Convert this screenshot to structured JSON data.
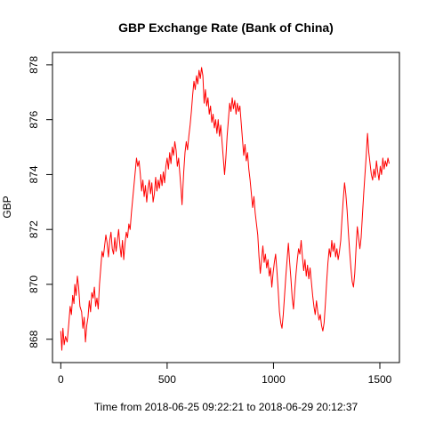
{
  "chart_data": {
    "type": "line",
    "title": "GBP Exchange Rate (Bank of China)",
    "xlabel": "Time from 2018-06-25 09:22:21 to 2018-06-29 20:12:37",
    "ylabel": "GBP",
    "xlim": [
      -39,
      1592
    ],
    "ylim": [
      867.15,
      878.45
    ],
    "x_ticks": [
      0,
      500,
      1000,
      1500
    ],
    "y_ticks": [
      868,
      870,
      872,
      874,
      876,
      878
    ],
    "grid": false,
    "legend": "none",
    "series": [
      {
        "color": "#ff0000",
        "points": [
          [
            0,
            868.3
          ],
          [
            5,
            867.6
          ],
          [
            10,
            868.4
          ],
          [
            16,
            867.8
          ],
          [
            22,
            868.1
          ],
          [
            30,
            867.9
          ],
          [
            38,
            868.6
          ],
          [
            44,
            869.2
          ],
          [
            50,
            868.9
          ],
          [
            56,
            869.6
          ],
          [
            62,
            869.3
          ],
          [
            66,
            870.0
          ],
          [
            72,
            869.6
          ],
          [
            78,
            870.3
          ],
          [
            84,
            869.9
          ],
          [
            90,
            869.2
          ],
          [
            98,
            869.0
          ],
          [
            104,
            868.4
          ],
          [
            110,
            868.8
          ],
          [
            116,
            867.9
          ],
          [
            122,
            868.5
          ],
          [
            128,
            868.8
          ],
          [
            134,
            869.4
          ],
          [
            140,
            869.0
          ],
          [
            146,
            869.7
          ],
          [
            152,
            869.5
          ],
          [
            158,
            869.9
          ],
          [
            164,
            869.2
          ],
          [
            170,
            869.5
          ],
          [
            176,
            869.1
          ],
          [
            182,
            870.0
          ],
          [
            188,
            870.6
          ],
          [
            194,
            871.2
          ],
          [
            200,
            871.0
          ],
          [
            206,
            871.4
          ],
          [
            212,
            871.8
          ],
          [
            218,
            871.5
          ],
          [
            224,
            871.0
          ],
          [
            230,
            871.6
          ],
          [
            236,
            871.9
          ],
          [
            242,
            871.3
          ],
          [
            248,
            871.1
          ],
          [
            254,
            871.7
          ],
          [
            260,
            871.2
          ],
          [
            266,
            871.6
          ],
          [
            272,
            872.0
          ],
          [
            278,
            871.4
          ],
          [
            284,
            871.0
          ],
          [
            290,
            871.6
          ],
          [
            296,
            870.9
          ],
          [
            302,
            871.5
          ],
          [
            308,
            871.9
          ],
          [
            314,
            871.7
          ],
          [
            320,
            872.2
          ],
          [
            326,
            872.0
          ],
          [
            332,
            872.6
          ],
          [
            338,
            873.1
          ],
          [
            344,
            873.6
          ],
          [
            350,
            874.1
          ],
          [
            356,
            874.6
          ],
          [
            362,
            874.3
          ],
          [
            368,
            874.5
          ],
          [
            374,
            874.0
          ],
          [
            380,
            873.4
          ],
          [
            386,
            873.8
          ],
          [
            392,
            873.2
          ],
          [
            398,
            873.6
          ],
          [
            404,
            873.0
          ],
          [
            410,
            873.5
          ],
          [
            416,
            873.8
          ],
          [
            422,
            873.3
          ],
          [
            428,
            873.7
          ],
          [
            434,
            873.0
          ],
          [
            440,
            873.3
          ],
          [
            446,
            873.9
          ],
          [
            452,
            873.4
          ],
          [
            458,
            873.8
          ],
          [
            464,
            873.5
          ],
          [
            470,
            874.0
          ],
          [
            476,
            873.6
          ],
          [
            482,
            874.1
          ],
          [
            488,
            873.7
          ],
          [
            494,
            874.3
          ],
          [
            500,
            874.6
          ],
          [
            506,
            874.2
          ],
          [
            512,
            874.8
          ],
          [
            518,
            874.4
          ],
          [
            524,
            875.0
          ],
          [
            530,
            874.7
          ],
          [
            536,
            875.2
          ],
          [
            542,
            874.9
          ],
          [
            548,
            874.3
          ],
          [
            554,
            874.6
          ],
          [
            560,
            874.0
          ],
          [
            566,
            873.4
          ],
          [
            570,
            872.9
          ],
          [
            574,
            873.5
          ],
          [
            578,
            874.1
          ],
          [
            584,
            874.8
          ],
          [
            590,
            875.2
          ],
          [
            596,
            874.9
          ],
          [
            602,
            875.4
          ],
          [
            608,
            875.8
          ],
          [
            614,
            876.3
          ],
          [
            620,
            876.9
          ],
          [
            626,
            877.4
          ],
          [
            632,
            877.1
          ],
          [
            638,
            877.6
          ],
          [
            644,
            877.3
          ],
          [
            650,
            877.8
          ],
          [
            656,
            877.5
          ],
          [
            662,
            877.9
          ],
          [
            668,
            877.6
          ],
          [
            674,
            876.6
          ],
          [
            680,
            877.1
          ],
          [
            686,
            876.5
          ],
          [
            692,
            876.8
          ],
          [
            698,
            876.2
          ],
          [
            704,
            876.5
          ],
          [
            710,
            875.9
          ],
          [
            716,
            876.2
          ],
          [
            722,
            875.7
          ],
          [
            728,
            876.0
          ],
          [
            734,
            875.5
          ],
          [
            740,
            876.0
          ],
          [
            746,
            875.4
          ],
          [
            752,
            875.8
          ],
          [
            758,
            875.2
          ],
          [
            764,
            874.6
          ],
          [
            770,
            874.0
          ],
          [
            776,
            874.6
          ],
          [
            782,
            875.4
          ],
          [
            788,
            876.0
          ],
          [
            794,
            876.6
          ],
          [
            800,
            876.3
          ],
          [
            806,
            876.8
          ],
          [
            812,
            876.4
          ],
          [
            818,
            876.7
          ],
          [
            824,
            876.2
          ],
          [
            830,
            876.6
          ],
          [
            836,
            876.3
          ],
          [
            842,
            876.5
          ],
          [
            848,
            875.9
          ],
          [
            854,
            875.3
          ],
          [
            860,
            874.7
          ],
          [
            866,
            875.1
          ],
          [
            872,
            874.5
          ],
          [
            878,
            874.8
          ],
          [
            884,
            874.2
          ],
          [
            890,
            873.8
          ],
          [
            896,
            873.3
          ],
          [
            902,
            872.8
          ],
          [
            908,
            873.2
          ],
          [
            914,
            872.6
          ],
          [
            920,
            872.2
          ],
          [
            926,
            871.8
          ],
          [
            932,
            871.0
          ],
          [
            938,
            870.4
          ],
          [
            944,
            870.9
          ],
          [
            950,
            871.4
          ],
          [
            956,
            870.8
          ],
          [
            962,
            871.1
          ],
          [
            968,
            870.6
          ],
          [
            974,
            870.9
          ],
          [
            980,
            870.3
          ],
          [
            986,
            870.6
          ],
          [
            992,
            869.9
          ],
          [
            998,
            870.4
          ],
          [
            1004,
            870.8
          ],
          [
            1010,
            871.1
          ],
          [
            1016,
            870.5
          ],
          [
            1022,
            869.8
          ],
          [
            1028,
            869.0
          ],
          [
            1034,
            868.6
          ],
          [
            1040,
            868.4
          ],
          [
            1046,
            868.9
          ],
          [
            1052,
            869.6
          ],
          [
            1058,
            870.3
          ],
          [
            1064,
            870.9
          ],
          [
            1070,
            871.5
          ],
          [
            1076,
            870.8
          ],
          [
            1082,
            870.2
          ],
          [
            1088,
            869.5
          ],
          [
            1094,
            869.1
          ],
          [
            1100,
            869.8
          ],
          [
            1106,
            870.4
          ],
          [
            1112,
            870.9
          ],
          [
            1118,
            871.3
          ],
          [
            1124,
            871.1
          ],
          [
            1130,
            871.6
          ],
          [
            1136,
            871.0
          ],
          [
            1142,
            870.5
          ],
          [
            1148,
            870.9
          ],
          [
            1154,
            870.3
          ],
          [
            1160,
            870.7
          ],
          [
            1166,
            870.2
          ],
          [
            1172,
            870.6
          ],
          [
            1178,
            870.1
          ],
          [
            1184,
            869.6
          ],
          [
            1190,
            869.2
          ],
          [
            1196,
            868.9
          ],
          [
            1202,
            869.4
          ],
          [
            1208,
            869.0
          ],
          [
            1214,
            868.7
          ],
          [
            1220,
            868.9
          ],
          [
            1226,
            868.5
          ],
          [
            1232,
            868.3
          ],
          [
            1238,
            868.6
          ],
          [
            1244,
            869.3
          ],
          [
            1250,
            870.1
          ],
          [
            1256,
            870.8
          ],
          [
            1262,
            871.3
          ],
          [
            1268,
            871.0
          ],
          [
            1274,
            871.6
          ],
          [
            1280,
            871.2
          ],
          [
            1286,
            871.5
          ],
          [
            1292,
            871.0
          ],
          [
            1298,
            871.3
          ],
          [
            1304,
            870.9
          ],
          [
            1310,
            871.2
          ],
          [
            1316,
            871.6
          ],
          [
            1322,
            872.4
          ],
          [
            1328,
            873.1
          ],
          [
            1334,
            873.7
          ],
          [
            1340,
            873.3
          ],
          [
            1346,
            872.7
          ],
          [
            1352,
            871.9
          ],
          [
            1358,
            871.2
          ],
          [
            1364,
            870.6
          ],
          [
            1370,
            870.1
          ],
          [
            1376,
            869.9
          ],
          [
            1382,
            870.4
          ],
          [
            1388,
            871.3
          ],
          [
            1394,
            872.1
          ],
          [
            1400,
            871.7
          ],
          [
            1406,
            871.3
          ],
          [
            1412,
            871.7
          ],
          [
            1418,
            872.5
          ],
          [
            1424,
            873.3
          ],
          [
            1430,
            874.0
          ],
          [
            1436,
            874.7
          ],
          [
            1442,
            875.5
          ],
          [
            1448,
            874.8
          ],
          [
            1454,
            874.4
          ],
          [
            1460,
            874.0
          ],
          [
            1466,
            873.8
          ],
          [
            1472,
            874.2
          ],
          [
            1478,
            873.9
          ],
          [
            1484,
            874.5
          ],
          [
            1490,
            874.1
          ],
          [
            1496,
            873.8
          ],
          [
            1502,
            874.3
          ],
          [
            1508,
            874.0
          ],
          [
            1514,
            874.6
          ],
          [
            1520,
            874.2
          ],
          [
            1526,
            874.5
          ],
          [
            1532,
            874.3
          ],
          [
            1538,
            874.6
          ],
          [
            1544,
            874.4
          ]
        ]
      }
    ]
  }
}
